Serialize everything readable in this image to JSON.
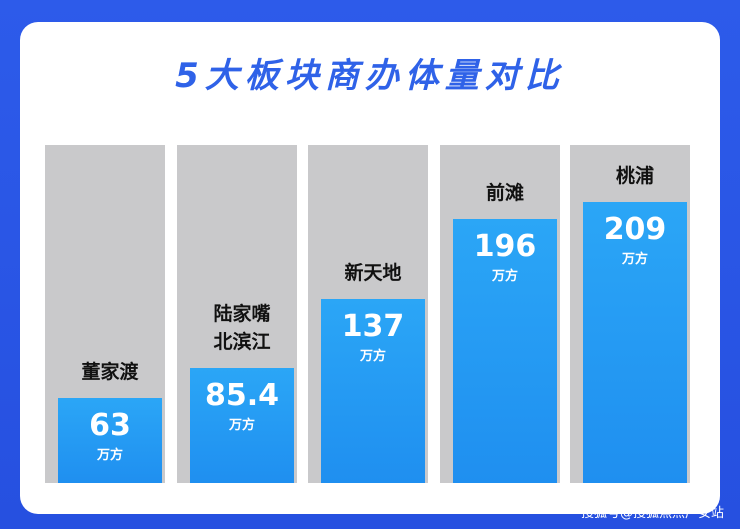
{
  "chart_data": {
    "type": "bar",
    "title": "5大板块商办体量对比",
    "categories": [
      "董家渡",
      "陆家嘴\n北滨江",
      "新天地",
      "前滩",
      "桃浦"
    ],
    "values": [
      63,
      85.4,
      137,
      196,
      209
    ],
    "unit": "万方",
    "color": "#2ba6f6"
  },
  "watermark": "搜狐号@搜狐焦点广安站"
}
